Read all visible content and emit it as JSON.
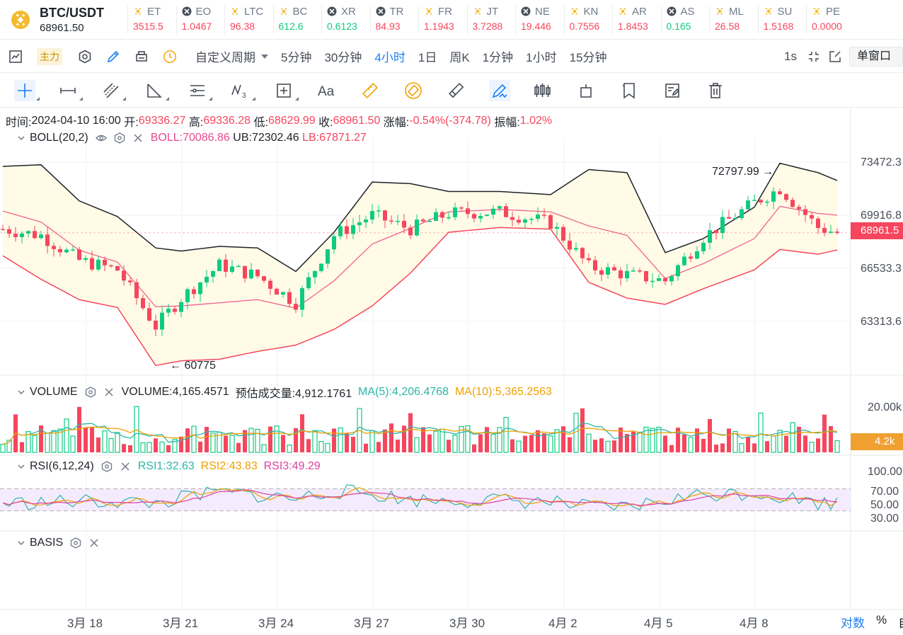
{
  "pair": {
    "name": "BTC/USDT",
    "price": "68961.50"
  },
  "tickers": [
    {
      "sym": "ET",
      "val": "3515.5",
      "dir": "down",
      "icon": "binance-icon"
    },
    {
      "sym": "EO",
      "val": "1.0467",
      "dir": "down",
      "icon": "xrp-icon"
    },
    {
      "sym": "LTC",
      "val": "96.38",
      "dir": "down",
      "icon": "binance-icon"
    },
    {
      "sym": "BC",
      "val": "612.6",
      "dir": "up",
      "icon": "binance-icon"
    },
    {
      "sym": "XR",
      "val": "0.6123",
      "dir": "up",
      "icon": "xrp-icon"
    },
    {
      "sym": "TR",
      "val": "84.93",
      "dir": "down",
      "icon": "xrp-icon"
    },
    {
      "sym": "FR",
      "val": "1.1943",
      "dir": "down",
      "icon": "binance-icon"
    },
    {
      "sym": "JT",
      "val": "3.7288",
      "dir": "down",
      "icon": "binance-icon"
    },
    {
      "sym": "NE",
      "val": "19.446",
      "dir": "down",
      "icon": "xrp-icon"
    },
    {
      "sym": "KN",
      "val": "0.7556",
      "dir": "down",
      "icon": "binance-icon"
    },
    {
      "sym": "AR",
      "val": "1.8453",
      "dir": "down",
      "icon": "binance-icon"
    },
    {
      "sym": "AS",
      "val": "0.165",
      "dir": "up",
      "icon": "xrp-icon"
    },
    {
      "sym": "ML",
      "val": "26.58",
      "dir": "down",
      "icon": "binance-icon"
    },
    {
      "sym": "SU",
      "val": "1.5168",
      "dir": "down",
      "icon": "binance-icon"
    },
    {
      "sym": "PE",
      "val": "0.0000",
      "dir": "down",
      "icon": "binance-icon"
    }
  ],
  "toolbar": {
    "main_badge": "主力",
    "custom_period": "自定义周期",
    "timeframes": [
      "5分钟",
      "30分钟",
      "4小时",
      "1日",
      "周K",
      "1分钟",
      "1小时",
      "15分钟"
    ],
    "active_timeframe": "4小时",
    "sec_label": "1s",
    "window_mode": "单窗口"
  },
  "ohlc": {
    "time_label": "时间:",
    "time": "2024-04-10 16:00",
    "open_label": "开:",
    "open": "69336.27",
    "high_label": "高:",
    "high": "69336.28",
    "low_label": "低:",
    "low": "68629.99",
    "close_label": "收:",
    "close": "68961.50",
    "change_label": "涨幅:",
    "change": "-0.54%(-374.78)",
    "amp_label": "振幅:",
    "amp": "1.02%"
  },
  "boll": {
    "title": "BOLL(20,2)",
    "mid": "BOLL:70086.86",
    "ub": "UB:72302.46",
    "lb": "LB:67871.27"
  },
  "volume": {
    "title": "VOLUME",
    "value": "VOLUME:4,165.4571",
    "est": "预估成交量:4,912.1761",
    "ma5": "MA(5):4,206.4768",
    "ma10": "MA(10):5,365.2563"
  },
  "rsi": {
    "title": "RSI(6,12,24)",
    "rsi1": "RSI1:32.63",
    "rsi2": "RSI2:43.83",
    "rsi3": "RSI3:49.29"
  },
  "basis": {
    "title": "BASIS"
  },
  "price_axis": [
    "73472.3",
    "69916.8",
    "66533.3",
    "63313.6"
  ],
  "current_price_tag": "68961.5",
  "volume_axis": [
    "20.00k"
  ],
  "volume_tag": "4.2k",
  "rsi_axis": [
    "100.00",
    "70.00",
    "50.00",
    "30.00"
  ],
  "dates": [
    "3月 18",
    "3月 21",
    "3月 24",
    "3月 27",
    "3月 30",
    "4月 2",
    "4月 5",
    "4月 8"
  ],
  "high_marker": "72797.99",
  "low_marker": "60775",
  "bottom": {
    "log": "对数",
    "pct": "%",
    "auto": "自"
  },
  "colors": {
    "up": "#0ecb81",
    "down": "#f6465d",
    "accent": "#1c7ff4"
  }
}
